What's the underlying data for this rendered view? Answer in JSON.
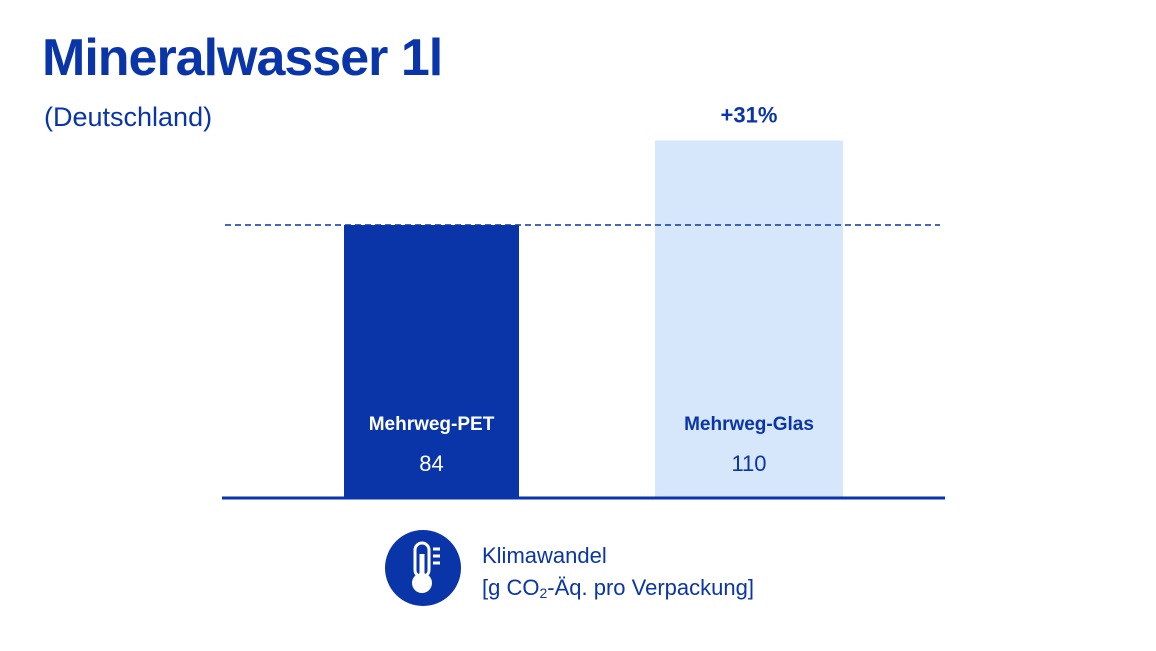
{
  "header": {
    "title": "Mineralwasser 1l",
    "subtitle": "(Deutschland)"
  },
  "legend": {
    "icon": "thermometer-icon",
    "line1": "Klimawandel",
    "line2_prefix": "[g CO",
    "line2_subscript": "2",
    "line2_suffix": "-Äq. pro Verpackung]"
  },
  "colors": {
    "primary": "#0a35a8",
    "light_bar": "#d6e6fb",
    "white": "#ffffff"
  },
  "chart_data": {
    "type": "bar",
    "categories": [
      "Mehrweg-PET",
      "Mehrweg-Glas"
    ],
    "values": [
      84,
      110
    ],
    "value_labels": [
      "84",
      "110"
    ],
    "reference_line": {
      "value": 84,
      "style": "dashed"
    },
    "annotations": [
      {
        "category": "Mehrweg-Glas",
        "text": "+31%"
      }
    ],
    "title": "Mineralwasser 1l",
    "subtitle": "(Deutschland)",
    "xlabel": "",
    "ylabel": "",
    "ylim": [
      0,
      120
    ],
    "grid": false,
    "legend": "bottom-center"
  }
}
